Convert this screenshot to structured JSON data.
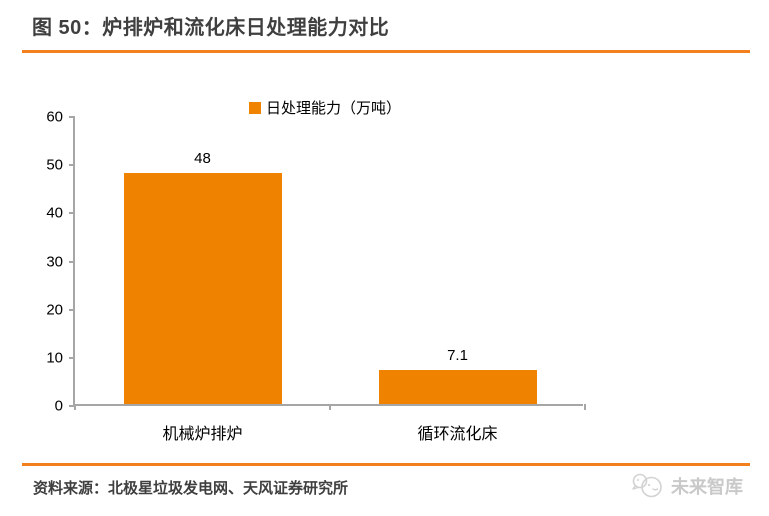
{
  "header": {
    "title": "图 50：炉排炉和流化床日处理能力对比"
  },
  "chart_data": {
    "type": "bar",
    "title": "图 50：炉排炉和流化床日处理能力对比",
    "categories": [
      "机械炉排炉",
      "循环流化床"
    ],
    "values": [
      48,
      7.1
    ],
    "data_labels": [
      "48",
      "7.1"
    ],
    "legend_label": "日处理能力（万吨）",
    "legend_position": "top-center",
    "xlabel": "",
    "ylabel": "",
    "ylim": [
      0,
      60
    ],
    "yticks": [
      0,
      10,
      20,
      30,
      40,
      50,
      60
    ],
    "grid": false,
    "bar_color": "#EF8300",
    "axis_color": "#A6A6A6"
  },
  "footer": {
    "source": "资料来源：北极星垃圾发电网、天风证券研究所",
    "watermark": "未来智库"
  },
  "colors": {
    "bar_orange": "#EF8300",
    "divider_orange": "#F2801E",
    "title_gray": "#3F3F3F",
    "axis_gray": "#A6A6A6",
    "watermark_gray": "#C9C9C9"
  }
}
